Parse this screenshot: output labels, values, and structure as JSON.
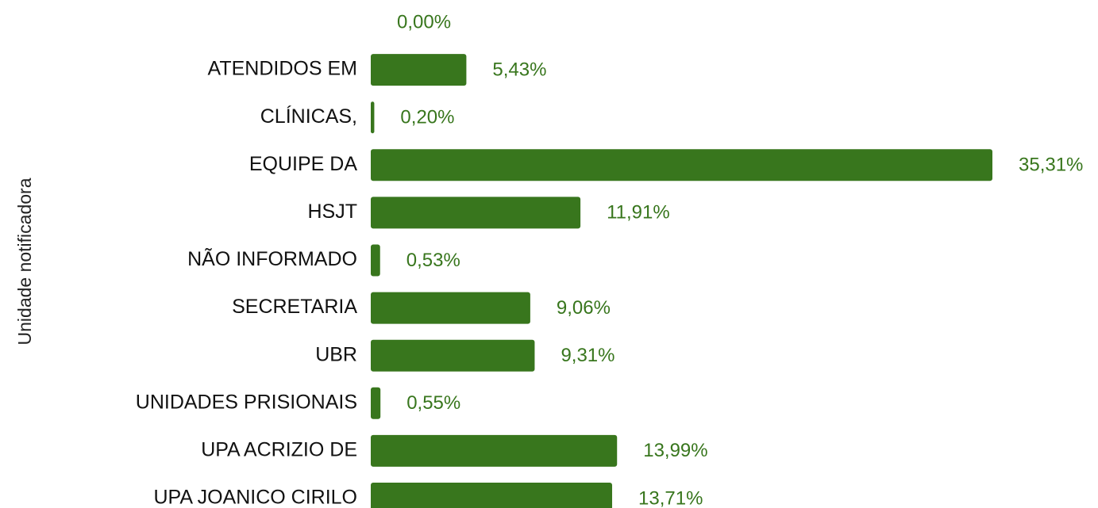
{
  "chart_data": {
    "type": "hbar",
    "y_label": "Unidade notificadora",
    "categories": [
      null,
      "ATENDIDOS EM",
      "CLÍNICAS,",
      "EQUIPE DA",
      "HSJT",
      "NÃO INFORMADO",
      "SECRETARIA",
      "UBR",
      "UNIDADES PRISIONAIS",
      "UPA ACRIZIO DE",
      "UPA JOANICO CIRILO"
    ],
    "values": [
      0,
      5.43,
      0.2,
      35.31,
      11.91,
      0.53,
      9.06,
      9.31,
      0.55,
      13.99,
      13.71
    ],
    "value_labels": [
      "0,00%",
      "5,43%",
      "0,20%",
      "35,31%",
      "11,91%",
      "0,53%",
      "9,06%",
      "9,31%",
      "0,55%",
      "13,99%",
      "13,71%"
    ],
    "color": "#38761d"
  }
}
